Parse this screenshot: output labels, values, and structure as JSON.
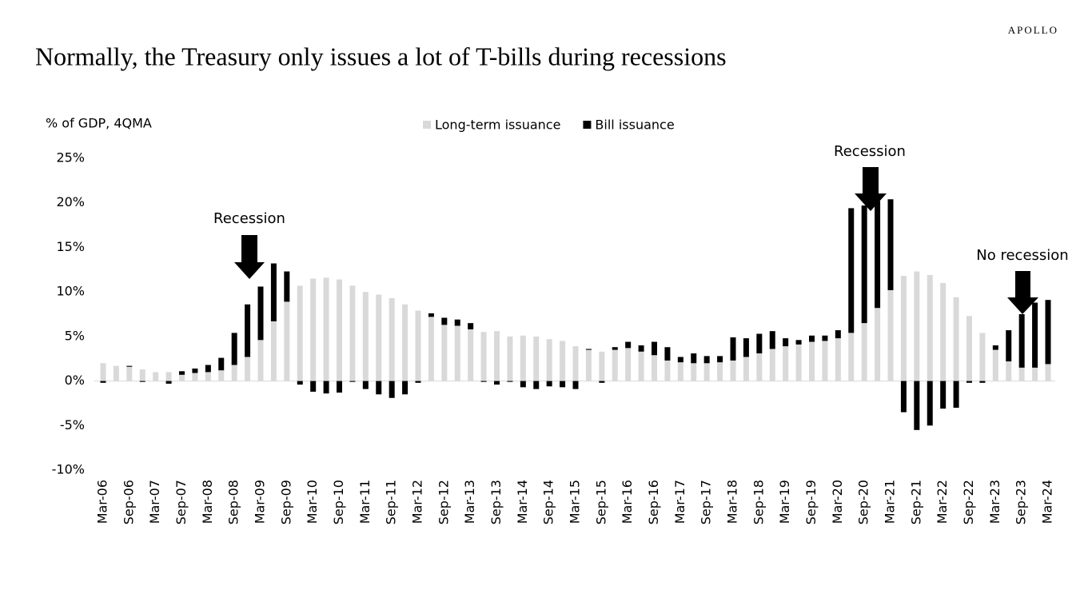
{
  "brand": "APOLLO",
  "chart_data": {
    "type": "stacked_bar",
    "title": "Normally, the Treasury only issues a lot of T-bills during recessions",
    "y_label": "% of GDP, 4QMA",
    "annotations": [
      "Recession",
      "Recession",
      "No recession"
    ],
    "categories": [
      "Mar-06",
      null,
      "Sep-06",
      null,
      "Mar-07",
      null,
      "Sep-07",
      null,
      "Mar-08",
      null,
      "Sep-08",
      null,
      "Mar-09",
      null,
      "Sep-09",
      null,
      "Mar-10",
      null,
      "Sep-10",
      null,
      "Mar-11",
      null,
      "Sep-11",
      null,
      "Mar-12",
      null,
      "Sep-12",
      null,
      "Mar-13",
      null,
      "Sep-13",
      null,
      "Mar-14",
      null,
      "Sep-14",
      null,
      "Mar-15",
      null,
      "Sep-15",
      null,
      "Mar-16",
      null,
      "Sep-16",
      null,
      "Mar-17",
      null,
      "Sep-17",
      null,
      "Mar-18",
      null,
      "Sep-18",
      null,
      "Mar-19",
      null,
      "Sep-19",
      null,
      "Mar-20",
      null,
      "Sep-20",
      null,
      "Mar-21",
      null,
      "Sep-21",
      null,
      "Mar-22",
      null,
      "Sep-22",
      null,
      "Mar-23",
      null,
      "Sep-23",
      null,
      "Mar-24"
    ],
    "series": [
      {
        "name": "Long-term issuance",
        "color": "#d9d9d9",
        "values": [
          2.0,
          1.7,
          1.6,
          1.3,
          1.0,
          1.0,
          0.7,
          0.9,
          1.0,
          1.2,
          1.8,
          2.7,
          4.6,
          6.7,
          8.9,
          10.7,
          11.5,
          11.6,
          11.4,
          10.7,
          10.0,
          9.7,
          9.3,
          8.6,
          7.9,
          7.2,
          6.3,
          6.2,
          5.8,
          5.5,
          5.6,
          5.0,
          5.1,
          5.0,
          4.7,
          4.5,
          3.9,
          3.5,
          3.3,
          3.5,
          3.7,
          3.3,
          2.9,
          2.3,
          2.1,
          2.0,
          2.0,
          2.1,
          2.3,
          2.7,
          3.1,
          3.6,
          3.9,
          4.1,
          4.4,
          4.5,
          4.8,
          5.4,
          6.5,
          8.2,
          10.2,
          11.8,
          12.3,
          11.9,
          11.0,
          9.4,
          7.3,
          5.4,
          3.5,
          2.2,
          1.5,
          1.5,
          1.9
        ]
      },
      {
        "name": "Bill issuance",
        "color": "#000000",
        "values": [
          -0.2,
          0,
          0.1,
          -0.1,
          0,
          -0.3,
          0.4,
          0.5,
          0.8,
          1.4,
          3.6,
          5.9,
          6.0,
          6.5,
          3.4,
          -0.4,
          -1.2,
          -1.4,
          -1.3,
          -0.1,
          -0.9,
          -1.5,
          -1.9,
          -1.5,
          -0.2,
          0.4,
          0.8,
          0.7,
          0.7,
          -0.1,
          -0.4,
          -0.1,
          -0.7,
          -0.9,
          -0.6,
          -0.7,
          -0.9,
          0.1,
          -0.2,
          0.3,
          0.7,
          0.7,
          1.5,
          1.5,
          0.6,
          1.1,
          0.8,
          0.7,
          2.6,
          2.1,
          2.2,
          2.0,
          0.9,
          0.5,
          0.7,
          0.6,
          0.9,
          14.0,
          13.2,
          12.0,
          10.2,
          -3.5,
          -5.5,
          -5.0,
          -3.1,
          -3.0,
          -0.2,
          -0.2,
          0.5,
          3.5,
          6.0,
          7.3,
          7.2
        ]
      }
    ],
    "ylim": [
      -10,
      25
    ],
    "yticks": [
      {
        "value": -10,
        "label": "-10%"
      },
      {
        "value": -5,
        "label": "-5%"
      },
      {
        "value": 0,
        "label": "0%"
      },
      {
        "value": 5,
        "label": "5%"
      },
      {
        "value": 10,
        "label": "10%"
      },
      {
        "value": 15,
        "label": "15%"
      },
      {
        "value": 20,
        "label": "20%"
      },
      {
        "value": 25,
        "label": "25%"
      }
    ],
    "grid": false,
    "legend": "top"
  }
}
